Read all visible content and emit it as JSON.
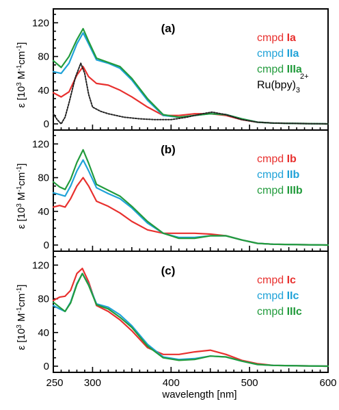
{
  "chart_data": [
    {
      "type": "line",
      "panel_label": "(a)",
      "xlim": [
        250,
        600
      ],
      "ylim": [
        0,
        130
      ],
      "ylabel_text": "ε [10",
      "yticks": [
        0,
        40,
        80,
        120
      ],
      "series": [
        {
          "name": "cmpd Ia",
          "color": "#e8302e",
          "dotted": false,
          "legend_parts": [
            "cmpd ",
            "Ia"
          ],
          "x": [
            250,
            260,
            270,
            280,
            288,
            295,
            305,
            320,
            335,
            350,
            370,
            390,
            410,
            430,
            450,
            470,
            490,
            510,
            530,
            560,
            600
          ],
          "y": [
            37,
            32,
            38,
            58,
            68,
            56,
            48,
            46,
            40,
            32,
            20,
            10,
            10,
            12,
            12,
            10,
            5,
            2,
            1,
            0.5,
            0
          ]
        },
        {
          "name": "cmpd IIa",
          "color": "#1fa2d8",
          "dotted": false,
          "legend_parts": [
            "cmpd ",
            "IIa"
          ],
          "x": [
            250,
            260,
            270,
            280,
            288,
            295,
            305,
            320,
            335,
            350,
            370,
            390,
            410,
            430,
            450,
            470,
            490,
            510,
            530,
            560,
            600
          ],
          "y": [
            62,
            60,
            72,
            95,
            108,
            95,
            76,
            72,
            66,
            52,
            28,
            10,
            8,
            10,
            12,
            11,
            6,
            2,
            1,
            0.5,
            0
          ]
        },
        {
          "name": "cmpd IIIa",
          "color": "#229b3c",
          "dotted": false,
          "legend_parts": [
            "cmpd ",
            "IIIa"
          ],
          "x": [
            250,
            260,
            270,
            280,
            288,
            295,
            305,
            320,
            335,
            350,
            370,
            390,
            410,
            430,
            450,
            470,
            490,
            510,
            530,
            560,
            600
          ],
          "y": [
            75,
            67,
            80,
            100,
            113,
            98,
            78,
            73,
            68,
            54,
            30,
            11,
            8,
            10,
            12,
            11,
            6,
            2,
            1,
            0.5,
            0
          ]
        },
        {
          "name": "Ru(bpy)3 2+",
          "color": "#222222",
          "dotted": true,
          "legend_parts": [
            "Ru(bpy)",
            "3",
            "2+"
          ],
          "x": [
            250,
            255,
            260,
            265,
            270,
            278,
            285,
            290,
            295,
            300,
            310,
            320,
            340,
            360,
            380,
            400,
            420,
            440,
            452,
            470,
            490,
            510,
            530,
            560,
            600
          ],
          "y": [
            12,
            5,
            0,
            8,
            25,
            55,
            72,
            60,
            35,
            20,
            15,
            12,
            8,
            6,
            5,
            5,
            8,
            12,
            14,
            11,
            5,
            2,
            1,
            0.5,
            0
          ]
        }
      ]
    },
    {
      "type": "line",
      "panel_label": "(b)",
      "xlim": [
        250,
        600
      ],
      "ylim": [
        0,
        130
      ],
      "ylabel_text": "ε [10",
      "yticks": [
        0,
        40,
        80,
        120
      ],
      "series": [
        {
          "name": "cmpd Ib",
          "color": "#e8302e",
          "dotted": false,
          "legend_parts": [
            "cmpd ",
            "Ib"
          ],
          "x": [
            250,
            258,
            265,
            272,
            280,
            288,
            295,
            305,
            320,
            335,
            350,
            370,
            390,
            410,
            430,
            450,
            470,
            490,
            510,
            530,
            560,
            600
          ],
          "y": [
            45,
            47,
            45,
            55,
            70,
            80,
            70,
            52,
            46,
            38,
            28,
            18,
            14,
            14,
            14,
            13,
            11,
            6,
            2,
            1,
            0.5,
            0
          ]
        },
        {
          "name": "cmpd IIb",
          "color": "#1fa2d8",
          "dotted": false,
          "legend_parts": [
            "cmpd ",
            "IIb"
          ],
          "x": [
            250,
            258,
            265,
            272,
            280,
            288,
            295,
            305,
            320,
            335,
            350,
            370,
            390,
            410,
            430,
            450,
            470,
            490,
            510,
            530,
            560,
            600
          ],
          "y": [
            62,
            60,
            58,
            70,
            88,
            101,
            88,
            68,
            61,
            55,
            44,
            26,
            14,
            9,
            9,
            11,
            11,
            6,
            2,
            1,
            0.5,
            0
          ]
        },
        {
          "name": "cmpd IIIb",
          "color": "#229b3c",
          "dotted": false,
          "legend_parts": [
            "cmpd ",
            "IIIb"
          ],
          "x": [
            250,
            258,
            265,
            272,
            280,
            288,
            295,
            305,
            320,
            335,
            350,
            370,
            390,
            410,
            430,
            450,
            470,
            490,
            510,
            530,
            560,
            600
          ],
          "y": [
            75,
            69,
            66,
            78,
            98,
            113,
            97,
            72,
            65,
            58,
            46,
            28,
            14,
            8,
            8,
            11,
            11,
            6,
            2,
            1,
            0.5,
            0
          ]
        }
      ]
    },
    {
      "type": "line",
      "panel_label": "(c)",
      "xlim": [
        250,
        600
      ],
      "ylim": [
        0,
        130
      ],
      "ylabel_text": "ε [10",
      "yticks": [
        0,
        40,
        80,
        120
      ],
      "series": [
        {
          "name": "cmpd Ic",
          "color": "#e8302e",
          "dotted": false,
          "legend_parts": [
            "cmpd ",
            "Ic"
          ],
          "x": [
            250,
            258,
            265,
            272,
            280,
            287,
            295,
            305,
            320,
            335,
            350,
            370,
            390,
            410,
            430,
            450,
            470,
            490,
            510,
            530,
            560,
            600
          ],
          "y": [
            78,
            82,
            83,
            90,
            110,
            116,
            100,
            72,
            65,
            55,
            42,
            22,
            14,
            14,
            17,
            19,
            14,
            7,
            3,
            1,
            0.5,
            0
          ]
        },
        {
          "name": "cmpd IIc",
          "color": "#1fa2d8",
          "dotted": false,
          "legend_parts": [
            "cmpd ",
            "IIc"
          ],
          "x": [
            250,
            258,
            265,
            272,
            280,
            287,
            295,
            305,
            320,
            335,
            350,
            370,
            390,
            410,
            430,
            450,
            470,
            490,
            510,
            530,
            560,
            600
          ],
          "y": [
            72,
            68,
            65,
            76,
            98,
            110,
            97,
            74,
            70,
            61,
            48,
            26,
            11,
            8,
            9,
            12,
            11,
            6,
            2,
            1,
            0.5,
            0
          ]
        },
        {
          "name": "cmpd IIIc",
          "color": "#229b3c",
          "dotted": false,
          "legend_parts": [
            "cmpd ",
            "IIIc"
          ],
          "x": [
            250,
            258,
            265,
            272,
            280,
            287,
            295,
            305,
            320,
            335,
            350,
            370,
            390,
            410,
            430,
            450,
            470,
            490,
            510,
            530,
            560,
            600
          ],
          "y": [
            76,
            70,
            65,
            75,
            97,
            110,
            96,
            73,
            68,
            58,
            46,
            24,
            10,
            7,
            8,
            12,
            11,
            6,
            2,
            1,
            0.5,
            0
          ]
        }
      ]
    }
  ],
  "xaxis": {
    "ticks": [
      300,
      400,
      500,
      600
    ],
    "edge_tick_label": "250",
    "label": "wavelength [nm]"
  },
  "ylabel_parts": [
    "ε [10",
    "3",
    " M",
    "-1",
    "cm",
    "-1",
    "]"
  ]
}
